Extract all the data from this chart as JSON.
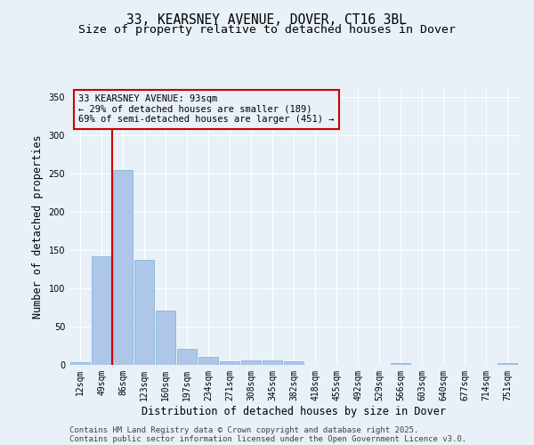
{
  "title_line1": "33, KEARSNEY AVENUE, DOVER, CT16 3BL",
  "title_line2": "Size of property relative to detached houses in Dover",
  "xlabel": "Distribution of detached houses by size in Dover",
  "ylabel": "Number of detached properties",
  "categories": [
    "12sqm",
    "49sqm",
    "86sqm",
    "123sqm",
    "160sqm",
    "197sqm",
    "234sqm",
    "271sqm",
    "308sqm",
    "345sqm",
    "382sqm",
    "418sqm",
    "455sqm",
    "492sqm",
    "529sqm",
    "566sqm",
    "603sqm",
    "640sqm",
    "677sqm",
    "714sqm",
    "751sqm"
  ],
  "values": [
    4,
    142,
    254,
    137,
    71,
    21,
    10,
    5,
    6,
    6,
    5,
    0,
    0,
    0,
    0,
    2,
    0,
    0,
    0,
    0,
    2
  ],
  "bar_color": "#aec6e8",
  "bar_edgecolor": "#7aafd4",
  "background_color": "#e8f0f8",
  "grid_color": "#ffffff",
  "vline_color": "#cc0000",
  "annotation_text": "33 KEARSNEY AVENUE: 93sqm\n← 29% of detached houses are smaller (189)\n69% of semi-detached houses are larger (451) →",
  "annotation_box_color": "#cc0000",
  "ylim": [
    0,
    360
  ],
  "yticks": [
    0,
    50,
    100,
    150,
    200,
    250,
    300,
    350
  ],
  "footer_line1": "Contains HM Land Registry data © Crown copyright and database right 2025.",
  "footer_line2": "Contains public sector information licensed under the Open Government Licence v3.0.",
  "title_fontsize": 10.5,
  "subtitle_fontsize": 9.5,
  "axis_label_fontsize": 8.5,
  "tick_fontsize": 7,
  "footer_fontsize": 6.5,
  "annotation_fontsize": 7.5
}
